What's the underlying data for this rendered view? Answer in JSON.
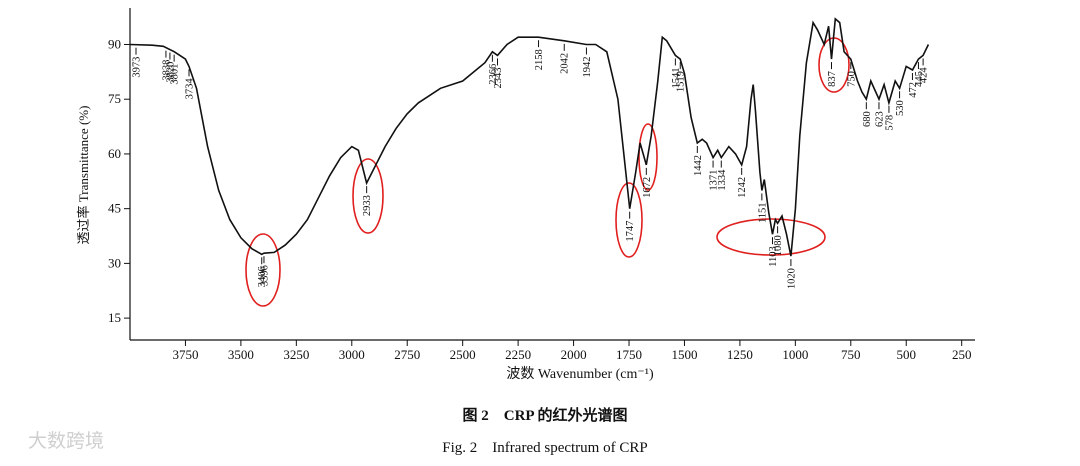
{
  "chart_data": {
    "type": "line",
    "y_label": "透过率 Transmittance (%)",
    "x_label": "波数 Wavenumber (cm⁻¹)",
    "caption_cn": "图 2　CRP 的红外光谱图",
    "caption_en": "Fig. 2　Infrared spectrum of CRP",
    "watermark": "大数跨境",
    "xlim": [
      4000,
      190
    ],
    "ylim": [
      9,
      100
    ],
    "xticks": [
      3750,
      3500,
      3250,
      3000,
      2750,
      2500,
      2250,
      2000,
      1750,
      1500,
      1250,
      1000,
      750,
      500,
      250
    ],
    "yticks": [
      15,
      30,
      45,
      60,
      75,
      90
    ],
    "x": [
      4000,
      3900,
      3850,
      3800,
      3750,
      3734,
      3700,
      3650,
      3600,
      3550,
      3500,
      3450,
      3406,
      3396,
      3350,
      3300,
      3250,
      3200,
      3150,
      3100,
      3050,
      3000,
      2970,
      2933,
      2900,
      2850,
      2800,
      2750,
      2700,
      2600,
      2500,
      2400,
      2366,
      2343,
      2300,
      2250,
      2158,
      2042,
      1942,
      1900,
      1850,
      1800,
      1770,
      1747,
      1720,
      1700,
      1672,
      1650,
      1620,
      1600,
      1580,
      1541,
      1519,
      1500,
      1470,
      1442,
      1420,
      1400,
      1371,
      1350,
      1334,
      1300,
      1270,
      1242,
      1220,
      1200,
      1190,
      1180,
      1160,
      1151,
      1140,
      1120,
      1103,
      1090,
      1080,
      1060,
      1040,
      1020,
      1000,
      980,
      950,
      920,
      900,
      870,
      850,
      837,
      820,
      800,
      780,
      750,
      720,
      700,
      680,
      660,
      623,
      600,
      578,
      550,
      530,
      500,
      472,
      445,
      424,
      400
    ],
    "series": [
      {
        "name": "CRP",
        "color": "#111111",
        "values": [
          90,
          89.8,
          89.5,
          88,
          86,
          84,
          78,
          62,
          50,
          42,
          37,
          34,
          32.5,
          32.8,
          33,
          35,
          38,
          42,
          48,
          54,
          59,
          62,
          61,
          52,
          56,
          62,
          67,
          71,
          74,
          78,
          80,
          85,
          88,
          87,
          90,
          92,
          92,
          91,
          90,
          90,
          88,
          75,
          58,
          45,
          55,
          63,
          57,
          65,
          80,
          92,
          91,
          87,
          86,
          82,
          70,
          63,
          64,
          63,
          59,
          61,
          59,
          62,
          60,
          57,
          62,
          75,
          79,
          72,
          55,
          50,
          53,
          44,
          38,
          42,
          41,
          43,
          38,
          32,
          45,
          65,
          85,
          96,
          94,
          90,
          95,
          86,
          97,
          96,
          88,
          86,
          80,
          77,
          75,
          80,
          75,
          79,
          74,
          80,
          78,
          84,
          83,
          86,
          87,
          90
        ]
      }
    ],
    "peak_labels": [
      3973,
      3838,
      3820,
      3801,
      3734,
      3406,
      3396,
      2933,
      2366,
      2343,
      2158,
      2042,
      1942,
      1747,
      1672,
      1541,
      1519,
      1442,
      1371,
      1334,
      1242,
      1151,
      1103,
      1080,
      1020,
      837,
      750,
      680,
      623,
      578,
      530,
      472,
      445,
      424
    ]
  }
}
